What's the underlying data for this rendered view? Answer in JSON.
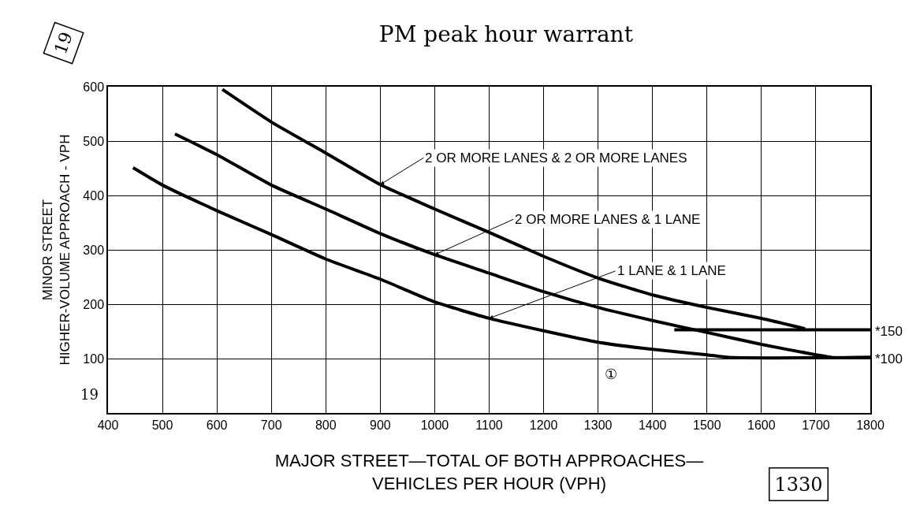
{
  "chart_data": {
    "type": "line",
    "title": "PM peak hour warrant",
    "xlabel": "MAJOR STREET—TOTAL OF BOTH APPROACHES—\nVEHICLES PER HOUR (VPH)",
    "ylabel": "MINOR STREET\nHIGHER-VOLUME APPROACH - VPH",
    "xlim": [
      400,
      1800
    ],
    "xticks": [
      400,
      500,
      600,
      700,
      800,
      900,
      1000,
      1100,
      1200,
      1300,
      1400,
      1500,
      1600,
      1700,
      1800
    ],
    "ylim": [
      0,
      600
    ],
    "yticks": [
      {
        "value": 0,
        "label": null
      },
      100,
      200,
      300,
      400,
      500,
      600
    ],
    "grid": true,
    "legend": false,
    "marker": "none",
    "line_style": "solid",
    "series": [
      {
        "name": "2 OR MORE LANES & 2 OR MORE LANES",
        "color": "#000000",
        "x": [
          610,
          700,
          800,
          900,
          1000,
          1100,
          1200,
          1300,
          1400,
          1500,
          1600,
          1680
        ],
        "values": [
          595,
          535,
          478,
          420,
          375,
          332,
          288,
          248,
          217,
          194,
          174,
          155
        ]
      },
      {
        "name": "2 OR MORE LANES & 1 LANE",
        "color": "#000000",
        "x": [
          523,
          600,
          700,
          800,
          900,
          1000,
          1100,
          1200,
          1300,
          1400,
          1500,
          1600,
          1700,
          1730,
          1800
        ],
        "values": [
          513,
          475,
          419,
          375,
          330,
          291,
          257,
          223,
          194,
          170,
          148,
          126,
          107,
          102,
          102
        ]
      },
      {
        "name": "1 LANE & 1 LANE",
        "color": "#000000",
        "x": [
          446,
          500,
          600,
          700,
          800,
          900,
          1000,
          1100,
          1200,
          1300,
          1400,
          1500,
          1540,
          1800
        ],
        "values": [
          451,
          419,
          372,
          328,
          283,
          246,
          204,
          174,
          151,
          130,
          117,
          107,
          102,
          102
        ]
      },
      {
        "color": "#000000",
        "x": [
          1440,
          1800
        ],
        "values": [
          153,
          153
        ]
      }
    ],
    "annotations": [
      "19",
      "19",
      "①",
      "1330",
      {
        "text": "*150",
        "x": 1800,
        "y": 150
      },
      {
        "text": "*100",
        "x": 1800,
        "y": 100
      }
    ]
  }
}
